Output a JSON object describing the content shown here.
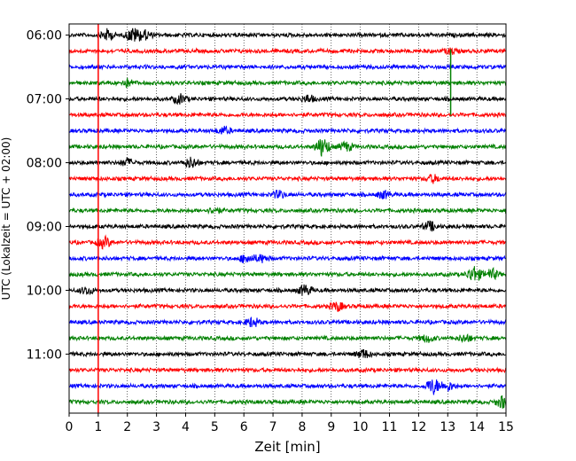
{
  "chart_data": {
    "type": "line",
    "title": "",
    "xlabel": "Zeit  [min]",
    "ylabel": "UTC (Lokalzeit = UTC + 02:00)",
    "xlim": [
      0,
      15
    ],
    "x_ticks": [
      "0",
      "1",
      "2",
      "3",
      "4",
      "5",
      "6",
      "7",
      "8",
      "9",
      "10",
      "11",
      "12",
      "13",
      "14",
      "15"
    ],
    "y_ticks": [
      "06:00",
      "07:00",
      "08:00",
      "09:00",
      "10:00",
      "11:00"
    ],
    "grid": "vertical dotted at each minute",
    "trace_interval_minutes": 15,
    "trace_colors": [
      "#000000",
      "#ff0000",
      "#0000ff",
      "#008000"
    ],
    "marker_line": {
      "x": 1,
      "color": "#ff0000"
    },
    "traces": [
      {
        "start": "06:00",
        "color": "#000000",
        "events": [
          {
            "x": 1.3,
            "amp": 6
          },
          {
            "x": 2.2,
            "amp": 8
          },
          {
            "x": 2.6,
            "amp": 5
          }
        ]
      },
      {
        "start": "06:15",
        "color": "#ff0000",
        "events": [
          {
            "x": 13.1,
            "amp": 3
          }
        ]
      },
      {
        "start": "06:30",
        "color": "#0000ff",
        "events": []
      },
      {
        "start": "06:45",
        "color": "#008000",
        "events": [
          {
            "x": 2.0,
            "amp": 4
          },
          {
            "x": 13.1,
            "amp": 38
          }
        ]
      },
      {
        "start": "07:00",
        "color": "#000000",
        "events": [
          {
            "x": 3.8,
            "amp": 5
          },
          {
            "x": 8.2,
            "amp": 4
          }
        ]
      },
      {
        "start": "07:15",
        "color": "#ff0000",
        "events": []
      },
      {
        "start": "07:30",
        "color": "#0000ff",
        "events": [
          {
            "x": 5.3,
            "amp": 4
          }
        ]
      },
      {
        "start": "07:45",
        "color": "#008000",
        "events": [
          {
            "x": 8.7,
            "amp": 11
          },
          {
            "x": 9.5,
            "amp": 5
          }
        ]
      },
      {
        "start": "08:00",
        "color": "#000000",
        "events": [
          {
            "x": 4.2,
            "amp": 6
          },
          {
            "x": 2.0,
            "amp": 4
          }
        ]
      },
      {
        "start": "08:15",
        "color": "#ff0000",
        "events": [
          {
            "x": 12.5,
            "amp": 4
          }
        ]
      },
      {
        "start": "08:30",
        "color": "#0000ff",
        "events": [
          {
            "x": 7.2,
            "amp": 4
          },
          {
            "x": 10.8,
            "amp": 4
          }
        ]
      },
      {
        "start": "08:45",
        "color": "#008000",
        "events": [
          {
            "x": 5.0,
            "amp": 3
          }
        ]
      },
      {
        "start": "09:00",
        "color": "#000000",
        "events": [
          {
            "x": 12.4,
            "amp": 5
          }
        ]
      },
      {
        "start": "09:15",
        "color": "#ff0000",
        "events": [
          {
            "x": 1.2,
            "amp": 6
          }
        ]
      },
      {
        "start": "09:30",
        "color": "#0000ff",
        "events": [
          {
            "x": 6.1,
            "amp": 5
          },
          {
            "x": 6.6,
            "amp": 4
          }
        ]
      },
      {
        "start": "09:45",
        "color": "#008000",
        "events": [
          {
            "x": 13.9,
            "amp": 9
          },
          {
            "x": 14.5,
            "amp": 6
          }
        ]
      },
      {
        "start": "10:00",
        "color": "#000000",
        "events": [
          {
            "x": 8.1,
            "amp": 6
          },
          {
            "x": 0.6,
            "amp": 4
          }
        ]
      },
      {
        "start": "10:15",
        "color": "#ff0000",
        "events": [
          {
            "x": 9.2,
            "amp": 5
          }
        ]
      },
      {
        "start": "10:30",
        "color": "#0000ff",
        "events": [
          {
            "x": 6.3,
            "amp": 5
          }
        ]
      },
      {
        "start": "10:45",
        "color": "#008000",
        "events": [
          {
            "x": 12.3,
            "amp": 4
          },
          {
            "x": 13.6,
            "amp": 4
          }
        ]
      },
      {
        "start": "11:00",
        "color": "#000000",
        "events": [
          {
            "x": 10.1,
            "amp": 5
          }
        ]
      },
      {
        "start": "11:15",
        "color": "#ff0000",
        "events": []
      },
      {
        "start": "11:30",
        "color": "#0000ff",
        "events": [
          {
            "x": 12.5,
            "amp": 9
          },
          {
            "x": 13.0,
            "amp": 5
          }
        ]
      },
      {
        "start": "11:45",
        "color": "#008000",
        "events": [
          {
            "x": 14.9,
            "amp": 7
          }
        ]
      }
    ]
  }
}
